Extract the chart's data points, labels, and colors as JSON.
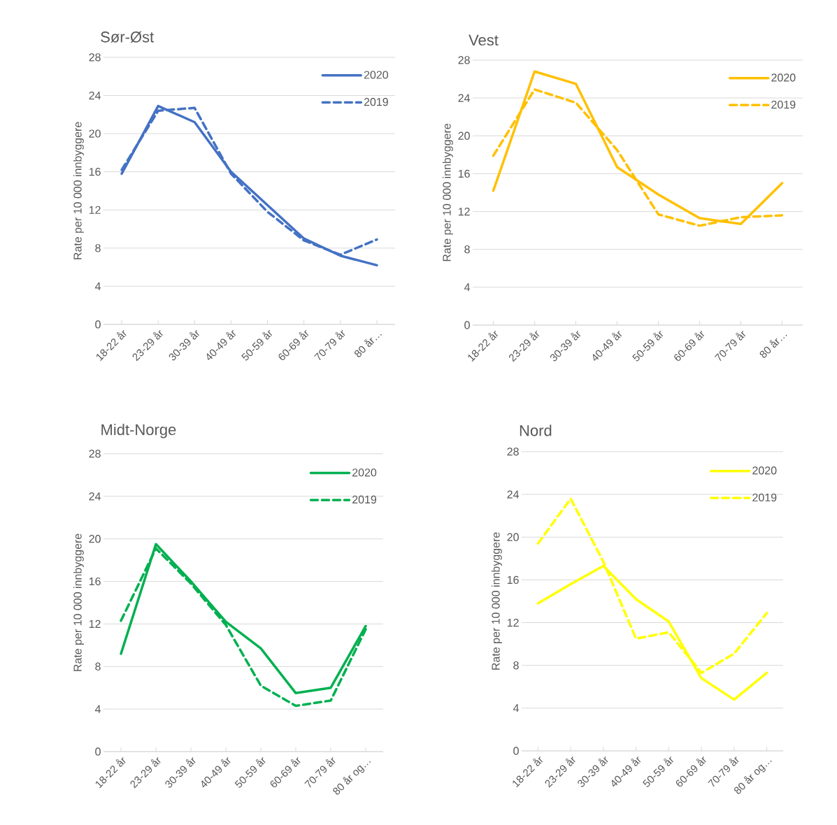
{
  "chart_data": [
    {
      "type": "line",
      "title": "Sør-Øst",
      "ylabel": "Rate per 10 000 innbyggere",
      "categories": [
        "18-22 år",
        "23-29 år",
        "30-39 år",
        "40-49 år",
        "50-59 år",
        "60-69 år",
        "70-79 år",
        "80 år…"
      ],
      "ylim": [
        0,
        28
      ],
      "yticks": [
        0,
        4,
        8,
        12,
        16,
        20,
        24,
        28
      ],
      "grid": "y",
      "legend": "top right",
      "series": [
        {
          "name": "2020",
          "color": "#4472c4",
          "line_style": "solid",
          "values": [
            15.8,
            22.9,
            21.2,
            16.0,
            12.5,
            9.0,
            7.2,
            6.2
          ]
        },
        {
          "name": "2019",
          "color": "#4472c4",
          "line_style": "dashed",
          "values": [
            16.2,
            22.4,
            22.7,
            15.8,
            11.8,
            8.8,
            7.3,
            8.9
          ]
        }
      ]
    },
    {
      "type": "line",
      "title": "Vest",
      "ylabel": "Rate per 10 000 innbyggere",
      "categories": [
        "18-22 år",
        "23-29 år",
        "30-39 år",
        "40-49 år",
        "50-59 år",
        "60-69 år",
        "70-79 år",
        "80 år…"
      ],
      "ylim": [
        0,
        28
      ],
      "yticks": [
        0,
        4,
        8,
        12,
        16,
        20,
        24,
        28
      ],
      "grid": "y",
      "legend": "top right",
      "series": [
        {
          "name": "2020",
          "color": "#ffc000",
          "line_style": "solid",
          "values": [
            14.2,
            26.8,
            25.5,
            16.7,
            13.8,
            11.3,
            10.7,
            15.0
          ]
        },
        {
          "name": "2019",
          "color": "#ffc000",
          "line_style": "dashed",
          "values": [
            17.9,
            24.9,
            23.5,
            18.5,
            11.7,
            10.5,
            11.4,
            11.6
          ]
        }
      ]
    },
    {
      "type": "line",
      "title": "Midt-Norge",
      "ylabel": "Rate per 10 000 innbyggere",
      "categories": [
        "18-22 år",
        "23-29 år",
        "30-39 år",
        "40-49 år",
        "50-59 år",
        "60-69 år",
        "70-79 år",
        "80 år og…"
      ],
      "ylim": [
        0,
        28
      ],
      "yticks": [
        0,
        4,
        8,
        12,
        16,
        20,
        24,
        28
      ],
      "grid": "y",
      "legend": "top right",
      "series": [
        {
          "name": "2020",
          "color": "#00b050",
          "line_style": "solid",
          "values": [
            9.2,
            19.5,
            16.0,
            12.2,
            9.7,
            5.5,
            6.0,
            11.8
          ]
        },
        {
          "name": "2019",
          "color": "#00b050",
          "line_style": "dashed",
          "values": [
            12.3,
            19.1,
            15.8,
            11.9,
            6.2,
            4.3,
            4.8,
            11.5
          ]
        }
      ]
    },
    {
      "type": "line",
      "title": "Nord",
      "ylabel": "Rate per 10 000 innbyggere",
      "categories": [
        "18-22 år",
        "23-29 år",
        "30-39 år",
        "40-49 år",
        "50-59 år",
        "60-69 år",
        "70-79 år",
        "80 år og…"
      ],
      "ylim": [
        0,
        28
      ],
      "yticks": [
        0,
        4,
        8,
        12,
        16,
        20,
        24,
        28
      ],
      "grid": "y",
      "legend": "top right",
      "series": [
        {
          "name": "2020",
          "color": "#ffff00",
          "line_style": "solid",
          "values": [
            13.8,
            15.6,
            17.3,
            14.2,
            12.1,
            6.8,
            4.8,
            7.3
          ]
        },
        {
          "name": "2019",
          "color": "#ffff00",
          "line_style": "dashed",
          "values": [
            19.4,
            23.6,
            17.7,
            10.5,
            11.1,
            7.3,
            9.1,
            12.9
          ]
        }
      ]
    }
  ]
}
